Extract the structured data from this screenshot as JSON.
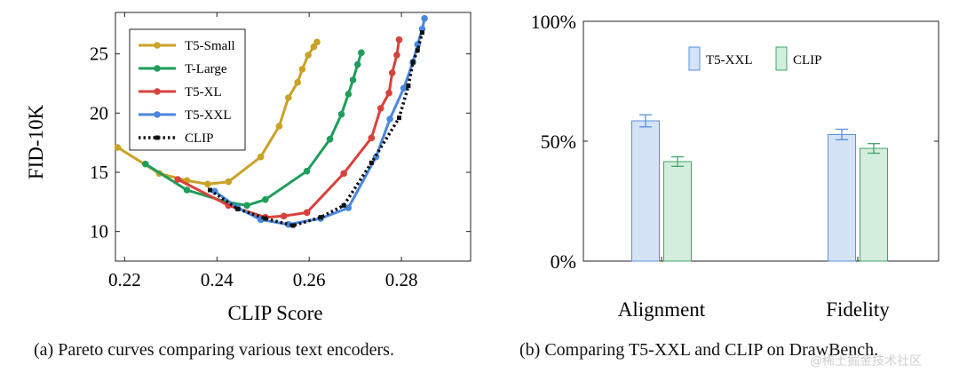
{
  "chart_data": [
    {
      "type": "line",
      "xlabel": "CLIP Score",
      "ylabel": "FID-10K",
      "xlim": [
        0.218,
        0.295
      ],
      "ylim": [
        7.5,
        28.5
      ],
      "xticks": [
        0.22,
        0.24,
        0.26,
        0.28
      ],
      "yticks": [
        10,
        15,
        20,
        25
      ],
      "legend_position": "top-left",
      "series": [
        {
          "name": "T5-Small",
          "color": "#c9a227",
          "style": "solid",
          "x": [
            0.2185,
            0.2275,
            0.2335,
            0.238,
            0.2425,
            0.2495,
            0.2535,
            0.2555,
            0.2575,
            0.2585,
            0.2598,
            0.261,
            0.2617
          ],
          "y": [
            17.1,
            14.9,
            14.3,
            14.0,
            14.2,
            16.3,
            18.9,
            21.3,
            22.6,
            23.7,
            24.9,
            25.6,
            26.0
          ]
        },
        {
          "name": "T-Large",
          "color": "#1e9e5a",
          "style": "solid",
          "x": [
            0.2245,
            0.2335,
            0.242,
            0.2465,
            0.2505,
            0.2595,
            0.2645,
            0.267,
            0.2685,
            0.2695,
            0.2705,
            0.2713
          ],
          "y": [
            15.7,
            13.5,
            12.5,
            12.2,
            12.7,
            15.1,
            17.8,
            19.9,
            21.6,
            22.8,
            24.1,
            25.1
          ]
        },
        {
          "name": "T5-XL",
          "color": "#d9413c",
          "style": "solid",
          "x": [
            0.2315,
            0.2425,
            0.2505,
            0.2545,
            0.2595,
            0.2675,
            0.2735,
            0.2755,
            0.2773,
            0.278,
            0.279,
            0.2795
          ],
          "y": [
            14.4,
            12.2,
            11.2,
            11.3,
            11.6,
            14.9,
            17.9,
            20.4,
            21.7,
            23.4,
            24.9,
            26.2
          ]
        },
        {
          "name": "T5-XXL",
          "color": "#4a88e0",
          "style": "solid",
          "x": [
            0.2395,
            0.2445,
            0.2495,
            0.2555,
            0.2625,
            0.2685,
            0.2745,
            0.2775,
            0.2805,
            0.2825,
            0.2835,
            0.2845,
            0.285
          ],
          "y": [
            13.4,
            12.0,
            11.0,
            10.6,
            11.1,
            12.0,
            16.3,
            19.5,
            22.1,
            24.3,
            25.8,
            27.1,
            28.0
          ]
        },
        {
          "name": "CLIP",
          "color": "#111111",
          "style": "dotted",
          "x": [
            0.2385,
            0.2445,
            0.2505,
            0.2565,
            0.2625,
            0.2675,
            0.2735,
            0.2795,
            0.2815,
            0.2825,
            0.2835,
            0.2845
          ],
          "y": [
            13.5,
            11.9,
            11.1,
            10.5,
            11.2,
            12.2,
            15.8,
            19.6,
            22.3,
            24.3,
            25.3,
            26.8
          ]
        }
      ]
    },
    {
      "type": "bar",
      "categories": [
        "Alignment",
        "Fidelity"
      ],
      "yticks": [
        "0%",
        "50%",
        "100%"
      ],
      "ylim": [
        0,
        100
      ],
      "legend_position": "top-center",
      "series": [
        {
          "name": "T5-XXL",
          "fill": "#d5e3f7",
          "stroke": "#5b8fd8",
          "values": [
            58.5,
            52.8
          ],
          "errors": [
            2.5,
            2.2
          ]
        },
        {
          "name": "CLIP",
          "fill": "#d3eedd",
          "stroke": "#3fa56a",
          "values": [
            41.5,
            47.0
          ],
          "errors": [
            2.0,
            2.0
          ]
        }
      ]
    }
  ],
  "captions": {
    "left": "(a) Pareto curves comparing various text encoders.",
    "right": "(b) Comparing T5-XXL and CLIP on DrawBench."
  },
  "watermark": "@稀土掘金技术社区"
}
